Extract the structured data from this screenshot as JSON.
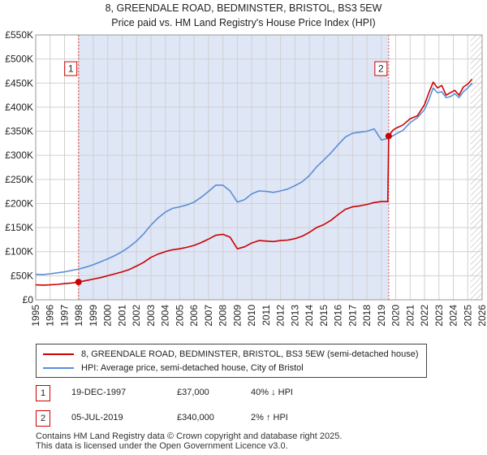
{
  "chart_data": {
    "type": "line",
    "title": "8, GREENDALE ROAD, BEDMINSTER, BRISTOL, BS3 5EW",
    "subtitle": "Price paid vs. HM Land Registry's House Price Index (HPI)",
    "xlim": [
      1995,
      2026
    ],
    "ylim": [
      0,
      550000
    ],
    "x_ticks": [
      1995,
      1996,
      1997,
      1998,
      1999,
      2000,
      2001,
      2002,
      2003,
      2004,
      2005,
      2006,
      2007,
      2008,
      2009,
      2010,
      2011,
      2012,
      2013,
      2014,
      2015,
      2016,
      2017,
      2018,
      2019,
      2020,
      2021,
      2022,
      2023,
      2024,
      2025,
      2026
    ],
    "y_ticks": [
      0,
      50000,
      100000,
      150000,
      200000,
      250000,
      300000,
      350000,
      400000,
      450000,
      500000,
      550000
    ],
    "y_tick_labels": [
      "£0",
      "£50K",
      "£100K",
      "£150K",
      "£200K",
      "£250K",
      "£300K",
      "£350K",
      "£400K",
      "£450K",
      "£500K",
      "£550K"
    ],
    "grid": true,
    "colors": {
      "property": "#cc0000",
      "hpi": "#5b8ed6",
      "shade": "#dfe6f6",
      "hatch": "#bbbbbb",
      "grid": "#d0d0d0",
      "marker_line": "#e05050"
    },
    "series": [
      {
        "name": "8, GREENDALE ROAD, BEDMINSTER, BRISTOL, BS3 5EW (semi-detached house)",
        "key": "property",
        "x": [
          1995.0,
          1995.5,
          1996.0,
          1996.5,
          1997.0,
          1997.5,
          1997.97,
          1998.5,
          1999.0,
          1999.5,
          2000.0,
          2000.5,
          2001.0,
          2001.5,
          2002.0,
          2002.5,
          2003.0,
          2003.5,
          2004.0,
          2004.5,
          2005.0,
          2005.5,
          2006.0,
          2006.5,
          2007.0,
          2007.5,
          2008.0,
          2008.5,
          2009.0,
          2009.5,
          2010.0,
          2010.5,
          2011.0,
          2011.5,
          2012.0,
          2012.5,
          2013.0,
          2013.5,
          2014.0,
          2014.5,
          2015.0,
          2015.5,
          2016.0,
          2016.5,
          2017.0,
          2017.5,
          2018.0,
          2018.5,
          2019.0,
          2019.45,
          2019.51,
          2019.8,
          2020.0,
          2020.5,
          2021.0,
          2021.5,
          2022.0,
          2022.3,
          2022.6,
          2022.9,
          2023.2,
          2023.5,
          2023.8,
          2024.1,
          2024.4,
          2024.7,
          2025.0,
          2025.3
        ],
        "values": [
          31000,
          30500,
          31000,
          32000,
          33500,
          35000,
          37000,
          40000,
          43000,
          46000,
          50000,
          54000,
          58000,
          63000,
          70000,
          78000,
          88000,
          95000,
          100000,
          104000,
          106000,
          109000,
          113000,
          119000,
          126000,
          134000,
          136000,
          130000,
          106000,
          110000,
          118000,
          123000,
          122000,
          121000,
          123000,
          124000,
          127000,
          132000,
          140000,
          150000,
          156000,
          165000,
          177000,
          188000,
          193000,
          195000,
          198000,
          202000,
          204000,
          204000,
          340000,
          352000,
          356000,
          363000,
          376000,
          382000,
          405000,
          430000,
          452000,
          440000,
          445000,
          425000,
          430000,
          435000,
          425000,
          442000,
          448000,
          458000
        ]
      },
      {
        "name": "HPI: Average price, semi-detached house, City of Bristol",
        "key": "hpi",
        "x": [
          1995.0,
          1995.5,
          1996.0,
          1996.5,
          1997.0,
          1997.5,
          1998.0,
          1998.5,
          1999.0,
          1999.5,
          2000.0,
          2000.5,
          2001.0,
          2001.5,
          2002.0,
          2002.5,
          2003.0,
          2003.5,
          2004.0,
          2004.5,
          2005.0,
          2005.5,
          2006.0,
          2006.5,
          2007.0,
          2007.5,
          2008.0,
          2008.5,
          2009.0,
          2009.5,
          2010.0,
          2010.5,
          2011.0,
          2011.5,
          2012.0,
          2012.5,
          2013.0,
          2013.5,
          2014.0,
          2014.5,
          2015.0,
          2015.5,
          2016.0,
          2016.5,
          2017.0,
          2017.5,
          2018.0,
          2018.5,
          2019.0,
          2019.5,
          2020.0,
          2020.5,
          2021.0,
          2021.5,
          2022.0,
          2022.3,
          2022.6,
          2022.9,
          2023.2,
          2023.5,
          2023.8,
          2024.1,
          2024.4,
          2024.7,
          2025.0,
          2025.3
        ],
        "values": [
          53000,
          52500,
          54000,
          56000,
          58000,
          61000,
          64000,
          68000,
          73000,
          79000,
          85000,
          92000,
          100000,
          110000,
          122000,
          137000,
          155000,
          170000,
          182000,
          190000,
          193000,
          197000,
          203000,
          213000,
          225000,
          238000,
          238000,
          226000,
          203000,
          208000,
          220000,
          226000,
          225000,
          223000,
          226000,
          230000,
          237000,
          245000,
          258000,
          276000,
          290000,
          305000,
          322000,
          338000,
          346000,
          348000,
          350000,
          355000,
          332000,
          335000,
          344000,
          352000,
          368000,
          378000,
          395000,
          415000,
          440000,
          430000,
          432000,
          420000,
          422000,
          428000,
          420000,
          432000,
          440000,
          450000
        ]
      }
    ],
    "transactions": [
      {
        "num": "1",
        "date": "19-DEC-1997",
        "x": 1997.97,
        "price": "£37,000",
        "value": 37000,
        "hpi_change": "40% ↓ HPI"
      },
      {
        "num": "2",
        "date": "05-JUL-2019",
        "x": 2019.51,
        "price": "£340,000",
        "value": 340000,
        "hpi_change": "2% ↑ HPI"
      }
    ],
    "shaded_range": [
      1997.97,
      2019.51
    ],
    "hatched_from": 2025.2
  },
  "footer": {
    "line1": "Contains HM Land Registry data © Crown copyright and database right 2025.",
    "line2": "This data is licensed under the Open Government Licence v3.0."
  }
}
